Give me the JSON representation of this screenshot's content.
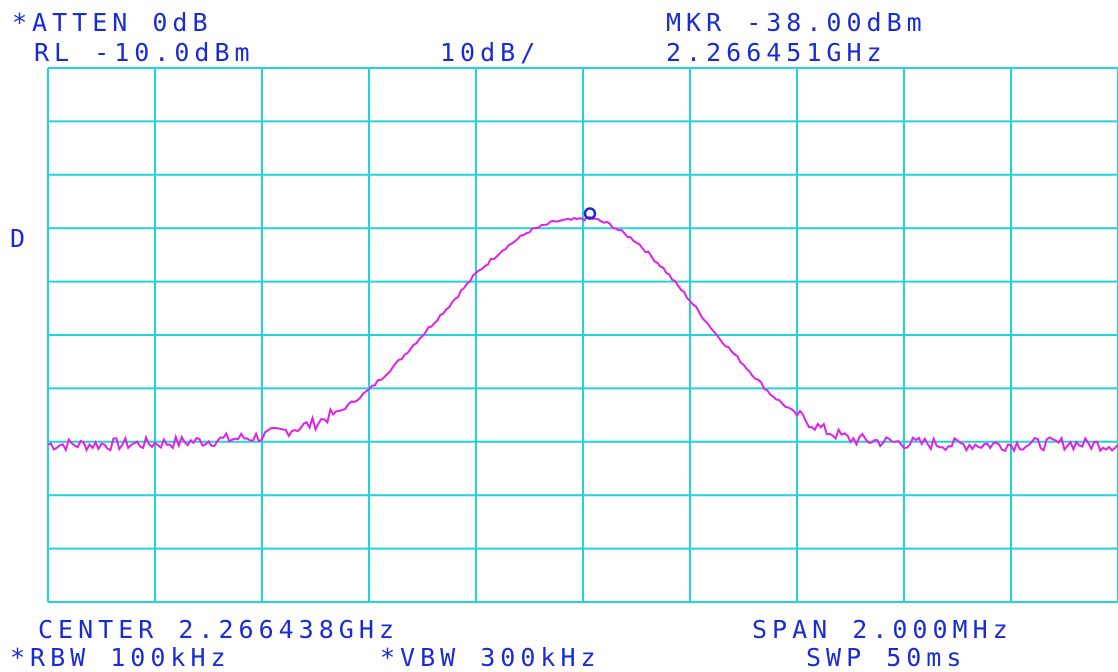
{
  "header": {
    "atten": "*ATTEN 0dB",
    "ref_level": "RL -10.0dBm",
    "scale": "10dB/",
    "marker_level": "MKR -38.00dBm",
    "marker_freq": "2.266451GHz",
    "detector": "D"
  },
  "footer": {
    "center": "CENTER 2.266438GHz",
    "span": "SPAN 2.000MHz",
    "rbw": "*RBW 100kHz",
    "vbw": "*VBW 300kHz",
    "sweep": "SWP 50ms"
  },
  "colors": {
    "grid": "#22d3d8",
    "trace": "#e020e8",
    "text": "#1a2bd6",
    "marker": "#1a2bd6",
    "background": "#ffffff"
  },
  "chart_data": {
    "type": "line",
    "title": "",
    "xlabel": "",
    "ylabel": "",
    "x_unit": "MHz offset from center",
    "y_unit": "dBm",
    "xlim": [
      -1.0,
      1.0
    ],
    "ylim": [
      -110,
      -10
    ],
    "grid": true,
    "divisions": {
      "x": 10,
      "y": 10
    },
    "series": [
      {
        "x": [
          -1.0,
          -0.9,
          -0.8,
          -0.7,
          -0.6,
          -0.5,
          -0.45,
          -0.4,
          -0.35,
          -0.3,
          -0.25,
          -0.2,
          -0.15,
          -0.1,
          -0.05,
          0.0,
          0.013,
          0.05,
          0.1,
          0.15,
          0.2,
          0.25,
          0.3,
          0.35,
          0.4,
          0.45,
          0.5,
          0.6,
          0.7,
          0.8,
          0.9,
          1.0
        ],
        "values": [
          -80.5,
          -80.5,
          -80.3,
          -79.8,
          -79.0,
          -76.5,
          -74.0,
          -70.3,
          -65.5,
          -60.0,
          -54.5,
          -48.5,
          -44.0,
          -40.5,
          -38.7,
          -38.3,
          -38.0,
          -39.3,
          -42.5,
          -47.5,
          -53.5,
          -60.0,
          -65.5,
          -71.0,
          -75.0,
          -77.8,
          -79.5,
          -80.2,
          -80.5,
          -80.5,
          -80.3,
          -80.6
        ]
      }
    ],
    "marker": {
      "x": 0.013,
      "y": -38.0
    }
  }
}
